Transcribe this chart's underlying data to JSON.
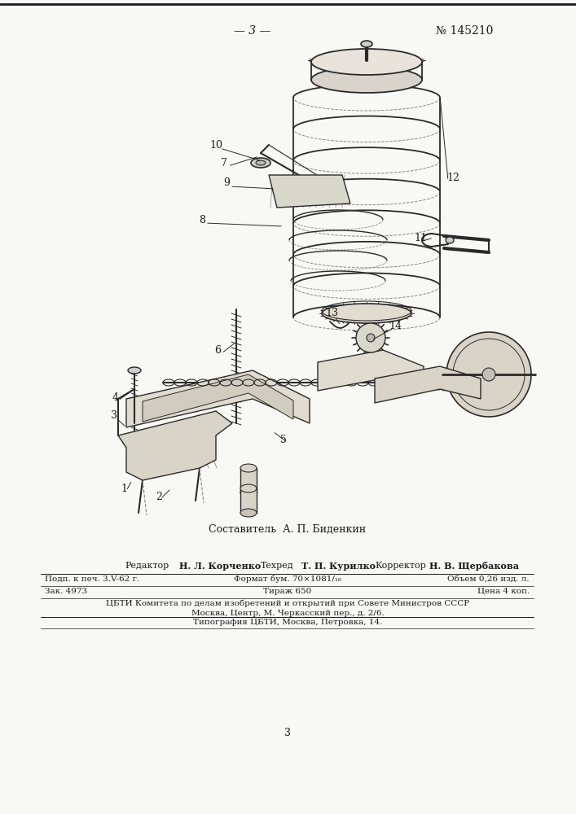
{
  "page_number": "— 3 —",
  "patent_number": "№ 145210",
  "background_color": "#f8f8f4",
  "text_color": "#1a1a1a",
  "draw_color": "#2a2a2a",
  "composer_line": "Составитель  А. П. Биденкин",
  "editor_label": "Редактор",
  "editor_name": "Н. Л. Корченко",
  "techred_label": "Техред",
  "techred_name": "Т. П. Курилко",
  "corrector_label": "Корректор",
  "corrector_name": "Н. В. Щербакова",
  "info_line1_left": "Подп. к печ. 3.V-62 г.",
  "info_line1_center": "Формат бум. 70×1081/₁₆",
  "info_line1_right": "Объем 0,26 изд. л.",
  "info_line2_left": "Зак. 4973",
  "info_line2_center": "Тираж 650",
  "info_line2_right": "Цена 4 коп.",
  "info_line3": "ЦБТИ Комитета по делам изобретений и открытий при Совете Министров СССР",
  "info_line4": "Москва, Центр, М. Черкасский пер., д. 2/6.",
  "info_line5": "Типография ЦБТИ, Москва, Петровка, 14.",
  "bottom_page_number": "3"
}
